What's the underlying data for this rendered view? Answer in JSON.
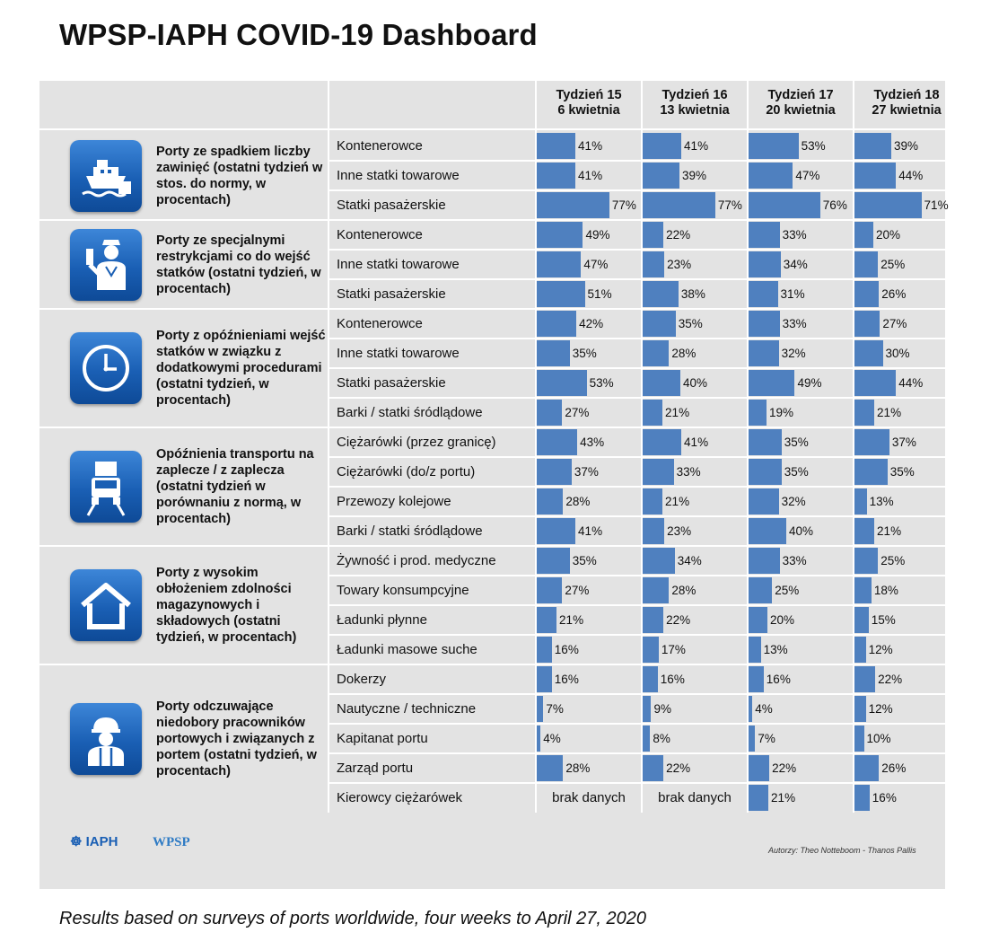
{
  "title": "WPSP-IAPH COVID-19 Dashboard",
  "caption": "Results based on surveys of ports worldwide, four weeks to April 27, 2020",
  "footer": {
    "authors": "Autorzy: Theo Notteboom - Thanos Pallis",
    "logo_iaph": "IAPH",
    "logo_wpsp": "WPSP"
  },
  "colors": {
    "bar": "#4f80bf",
    "panel": "#e3e3e3",
    "icon": "#1a5fb4"
  },
  "chart_data": {
    "type": "bar",
    "weeks": [
      {
        "line1": "Tydzień 15",
        "line2": "6 kwietnia"
      },
      {
        "line1": "Tydzień 16",
        "line2": "13 kwietnia"
      },
      {
        "line1": "Tydzień 17",
        "line2": "20 kwietnia"
      },
      {
        "line1": "Tydzień 18",
        "line2": "27 kwietnia"
      }
    ],
    "value_unit": "%",
    "no_data_label": "brak danych",
    "groups": [
      {
        "label": "Porty ze spadkiem liczby zawinięć (ostatni tydzień w stos. do normy, w procentach)",
        "icon": "ship-icon",
        "rows": [
          {
            "label": "Kontenerowce",
            "values": [
              41,
              41,
              53,
              39
            ]
          },
          {
            "label": "Inne statki towarowe",
            "values": [
              41,
              39,
              47,
              44
            ]
          },
          {
            "label": "Statki pasażerskie",
            "values": [
              77,
              77,
              76,
              71
            ]
          }
        ]
      },
      {
        "label": "Porty ze specjalnymi restrykcjami co do wejść statków (ostatni tydzień, w procentach)",
        "icon": "officer-stop-icon",
        "rows": [
          {
            "label": "Kontenerowce",
            "values": [
              49,
              22,
              33,
              20
            ]
          },
          {
            "label": "Inne statki towarowe",
            "values": [
              47,
              23,
              34,
              25
            ]
          },
          {
            "label": "Statki pasażerskie",
            "values": [
              51,
              38,
              31,
              26
            ]
          }
        ]
      },
      {
        "label": "Porty z opóźnieniami wejść statków w związku z dodatkowymi procedurami (ostatni tydzień, w procentach)",
        "icon": "clock-icon",
        "rows": [
          {
            "label": "Kontenerowce",
            "values": [
              42,
              35,
              33,
              27
            ]
          },
          {
            "label": "Inne statki towarowe",
            "values": [
              35,
              28,
              32,
              30
            ]
          },
          {
            "label": "Statki pasażerskie",
            "values": [
              53,
              40,
              49,
              44
            ]
          },
          {
            "label": "Barki / statki śródlądowe",
            "values": [
              27,
              21,
              19,
              21
            ]
          }
        ]
      },
      {
        "label": "Opóźnienia transportu na zaplecze / z zaplecza (ostatni tydzień w porównaniu z normą, w procentach)",
        "icon": "truck-icon",
        "rows": [
          {
            "label": "Ciężarówki (przez granicę)",
            "values": [
              43,
              41,
              35,
              37
            ]
          },
          {
            "label": "Ciężarówki (do/z portu)",
            "values": [
              37,
              33,
              35,
              35
            ]
          },
          {
            "label": "Przewozy kolejowe",
            "values": [
              28,
              21,
              32,
              13
            ]
          },
          {
            "label": "Barki / statki śródlądowe",
            "values": [
              41,
              23,
              40,
              21
            ]
          }
        ]
      },
      {
        "label": "Porty z wysokim obłożeniem zdolności magazynowych i składowych (ostatni tydzień, w procentach)",
        "icon": "warehouse-icon",
        "rows": [
          {
            "label": "Żywność i prod. medyczne",
            "values": [
              35,
              34,
              33,
              25
            ]
          },
          {
            "label": "Towary konsumpcyjne",
            "values": [
              27,
              28,
              25,
              18
            ]
          },
          {
            "label": "Ładunki płynne",
            "values": [
              21,
              22,
              20,
              15
            ]
          },
          {
            "label": "Ładunki masowe suche",
            "values": [
              16,
              17,
              13,
              12
            ]
          }
        ]
      },
      {
        "label": "Porty odczuwające niedobory pracowników portowych i związanych z portem (ostatni tydzień, w procentach)",
        "icon": "worker-icon",
        "rows": [
          {
            "label": "Dokerzy",
            "values": [
              16,
              16,
              16,
              22
            ]
          },
          {
            "label": "Nautyczne / techniczne",
            "values": [
              7,
              9,
              4,
              12
            ]
          },
          {
            "label": "Kapitanat portu",
            "values": [
              4,
              8,
              7,
              10
            ]
          },
          {
            "label": "Zarząd portu",
            "values": [
              28,
              22,
              22,
              26
            ]
          },
          {
            "label": "Kierowcy ciężarówek",
            "values": [
              null,
              null,
              21,
              16
            ]
          }
        ]
      }
    ]
  }
}
